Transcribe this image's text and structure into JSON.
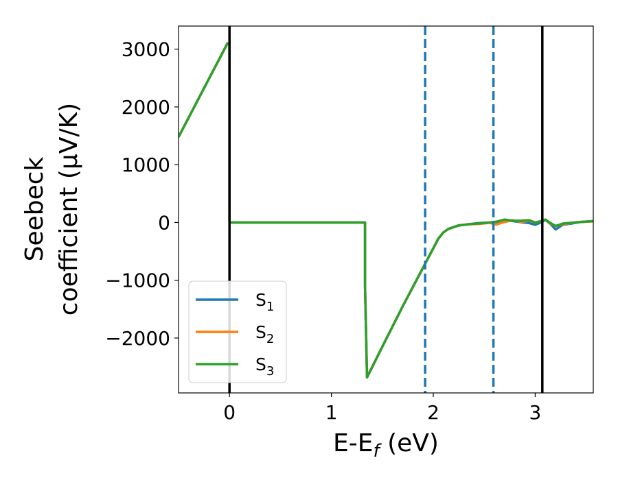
{
  "chart_data": {
    "type": "line",
    "xlabel": "E-E_f (eV)",
    "xlabel_parts": {
      "base": "E-E",
      "sub": "f",
      "unit": " (eV)"
    },
    "ylabel_line1": "Seebeck",
    "ylabel_line2": "coefficient  (μV/K)",
    "xlim": [
      -0.5,
      3.57
    ],
    "ylim": [
      -2950,
      3400
    ],
    "xticks": [
      0,
      1,
      2,
      3
    ],
    "xtick_labels": [
      "0",
      "1",
      "2",
      "3"
    ],
    "yticks": [
      -2000,
      -1000,
      0,
      1000,
      2000,
      3000
    ],
    "ytick_labels": [
      "−2000",
      "−1000",
      "0",
      "1000",
      "2000",
      "3000"
    ],
    "legend_position": "lower left",
    "series": [
      {
        "name": "S1",
        "label_base": "S",
        "label_sub": "1",
        "color": "#1f77b4",
        "x": [
          -0.5,
          -0.02,
          0.0,
          0.0,
          1.33,
          1.33,
          1.35,
          1.5,
          1.7,
          1.9,
          2.05,
          2.1,
          2.15,
          2.25,
          2.35,
          2.45,
          2.55,
          2.62,
          2.7,
          2.78,
          2.86,
          2.94,
          3.0,
          3.05,
          3.1,
          3.15,
          3.2,
          3.27,
          3.35,
          3.45,
          3.57
        ],
        "y": [
          1480,
          3100,
          3100,
          0,
          0,
          -1100,
          -2680,
          -2150,
          -1450,
          -780,
          -280,
          -170,
          -110,
          -50,
          -30,
          -10,
          0,
          5,
          45,
          25,
          5,
          -10,
          -40,
          -5,
          45,
          -25,
          -120,
          -40,
          -20,
          10,
          20
        ]
      },
      {
        "name": "S2",
        "label_base": "S",
        "label_sub": "2",
        "color": "#ff7f0e",
        "x": [
          -0.5,
          -0.02,
          0.0,
          0.0,
          1.33,
          1.33,
          1.35,
          1.5,
          1.7,
          1.9,
          2.05,
          2.1,
          2.15,
          2.25,
          2.35,
          2.45,
          2.55,
          2.62,
          2.7,
          2.78,
          2.86,
          2.94,
          3.0,
          3.05,
          3.1,
          3.15,
          3.2,
          3.27,
          3.35,
          3.45,
          3.57
        ],
        "y": [
          1480,
          3100,
          3100,
          0,
          0,
          -1100,
          -2680,
          -2150,
          -1450,
          -780,
          -280,
          -170,
          -110,
          -50,
          -30,
          -25,
          -5,
          -35,
          10,
          40,
          10,
          30,
          0,
          20,
          50,
          -20,
          -60,
          -30,
          -10,
          10,
          20
        ]
      },
      {
        "name": "S3",
        "label_base": "S",
        "label_sub": "3",
        "color": "#2ca02c",
        "x": [
          -0.5,
          -0.02,
          0.0,
          0.0,
          1.33,
          1.33,
          1.35,
          1.5,
          1.7,
          1.9,
          2.05,
          2.1,
          2.15,
          2.25,
          2.35,
          2.45,
          2.55,
          2.62,
          2.7,
          2.78,
          2.86,
          2.94,
          3.0,
          3.05,
          3.1,
          3.15,
          3.2,
          3.27,
          3.35,
          3.45,
          3.57
        ],
        "y": [
          1480,
          3100,
          3100,
          0,
          0,
          -1100,
          -2680,
          -2150,
          -1450,
          -780,
          -280,
          -170,
          -110,
          -50,
          -30,
          -15,
          0,
          15,
          50,
          30,
          30,
          40,
          0,
          20,
          50,
          -10,
          -60,
          -20,
          -5,
          10,
          25
        ]
      }
    ],
    "reference_lines": [
      {
        "x": 0.0,
        "color": "#000000",
        "style": "solid"
      },
      {
        "x": 3.07,
        "color": "#000000",
        "style": "solid"
      },
      {
        "x": 1.92,
        "color": "#1f77b4",
        "style": "dashed"
      },
      {
        "x": 2.59,
        "color": "#1f77b4",
        "style": "dashed"
      }
    ]
  }
}
